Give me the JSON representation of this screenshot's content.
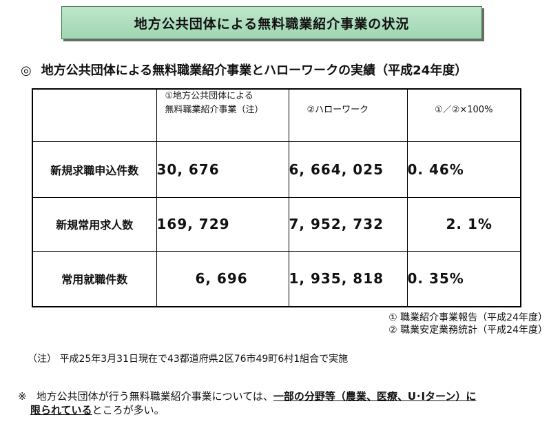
{
  "title": "地方公共団体による無料職業紹介事業の状況",
  "heading": {
    "mark": "◎",
    "text": "地方公共団体による無料職業紹介事業とハローワークの実績（平成24年度）"
  },
  "table": {
    "headers": [
      "",
      "①地方公共団体による\n無料職業紹介事業（注）",
      "②ハローワーク",
      "①／②×100%"
    ],
    "rows": [
      {
        "label": "新規求職申込件数",
        "col1": "30, 676",
        "col2": "6, 664, 025",
        "col3": "0. 46%"
      },
      {
        "label": "新規常用求人数",
        "col1": "169, 729",
        "col2": "7, 952, 732",
        "col3": "2. 1%"
      },
      {
        "label": "常用就職件数",
        "col1": "6, 696",
        "col2": "1, 935, 818",
        "col3": "0. 35%"
      }
    ]
  },
  "sources": [
    "①  職業紹介事業報告（平成24年度）",
    "②  職業安定業務統計（平成24年度）"
  ],
  "note": "（注）  平成25年3月31日現在で43都道府県2区76市49町6村1組合で実施",
  "remark": {
    "mark": "※",
    "part1": "地方公共団体が行う無料職業紹介事業については、",
    "underline1": "一部の分野等（農業、医療、U･Iターン）に",
    "underline2": "限られている",
    "part2": "ところが多い。"
  }
}
